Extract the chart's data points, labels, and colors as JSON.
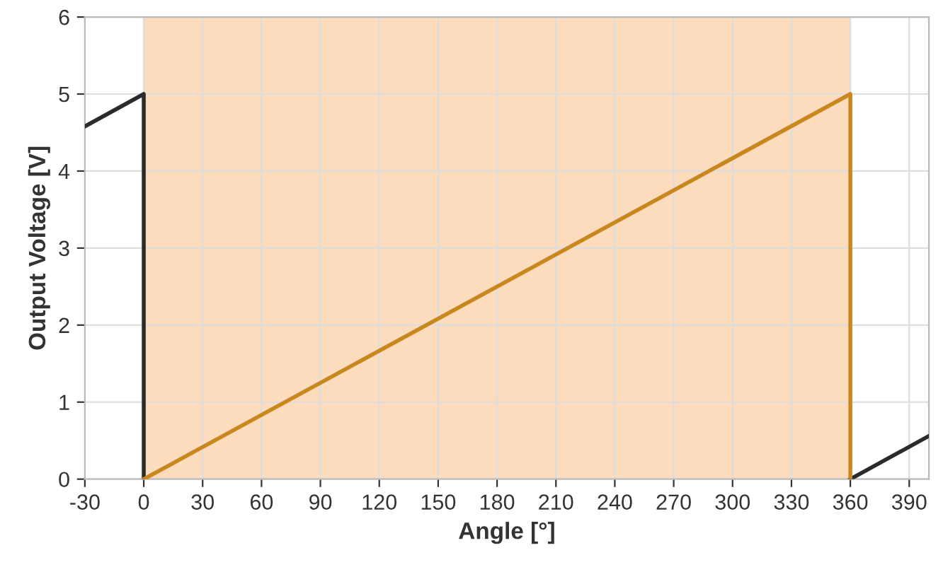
{
  "chart_data": {
    "type": "line",
    "xlabel": "Angle [°]",
    "ylabel": "Output Voltage [V]",
    "series": [
      {
        "color": "#2b2b2b",
        "x": [
          -30,
          0,
          0
        ],
        "values": [
          4.58,
          5,
          0
        ]
      },
      {
        "color": "#2b2b2b",
        "x": [
          360,
          400
        ],
        "values": [
          0,
          0.56
        ]
      },
      {
        "color": "#c8871f",
        "x": [
          0,
          360,
          360
        ],
        "values": [
          0,
          5,
          0
        ]
      }
    ],
    "bands": [
      {
        "axis": "x",
        "from": 0,
        "to": 360,
        "color": "#fcdcbc"
      }
    ],
    "xlim": [
      -30,
      400
    ],
    "xticks": [
      -30,
      0,
      30,
      60,
      90,
      120,
      150,
      180,
      210,
      240,
      270,
      300,
      330,
      360,
      390
    ],
    "ylim": [
      0,
      6
    ],
    "yticks": [
      0,
      1,
      2,
      3,
      4,
      5,
      6
    ],
    "grid": true,
    "legend": false,
    "marker": "none",
    "line_style": "solid"
  }
}
